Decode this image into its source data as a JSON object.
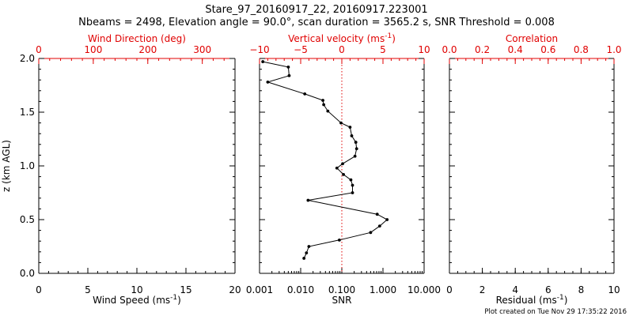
{
  "figure": {
    "title_line1": "Stare_97_20160917_22, 20160917.223001",
    "title_line2": "Nbeams = 2498, Elevation angle = 90.0°, scan duration = 3565.2 s, SNR Threshold = 0.008",
    "credit": "Plot created on Tue Nov 29 17:35:22 2016",
    "colors": {
      "axis": "#000000",
      "top_axis": "#e00000",
      "reference_line": "#e00000",
      "data": "#000000"
    }
  },
  "chart_data": [
    {
      "type": "line",
      "panel": "wind",
      "ylabel": "z (km AGL)",
      "ylim": [
        0,
        2
      ],
      "yticks": [
        "0.0",
        "0.5",
        "1.0",
        "1.5",
        "2.0"
      ],
      "bottom_axis": {
        "label": "Wind Speed (ms",
        "unit_sup": "-1",
        "label_end": ")",
        "range": [
          0,
          20
        ],
        "ticks": [
          "0",
          "5",
          "10",
          "15",
          "20"
        ]
      },
      "top_axis": {
        "label": "Wind Direction (deg)",
        "range": [
          0,
          360
        ],
        "ticks": [
          "0",
          "100",
          "200",
          "300"
        ]
      },
      "series": []
    },
    {
      "type": "line",
      "panel": "vertical-velocity",
      "ylim": [
        0,
        2
      ],
      "xscale": "log",
      "bottom_axis": {
        "label": "SNR",
        "range": [
          0.001,
          10
        ],
        "ticks": [
          "0.001",
          "0.010",
          "0.100",
          "1.000",
          "10.000"
        ]
      },
      "top_axis": {
        "label": "Vertical velocity (ms",
        "unit_sup": "-1",
        "label_end": ")",
        "range": [
          -10,
          10
        ],
        "ticks": [
          "−10",
          "−5",
          "0",
          "5",
          "10"
        ]
      },
      "reference_line": {
        "axis": "top",
        "value": 0
      },
      "series": [
        {
          "axis": "top",
          "points": [
            {
              "x": -9.6,
              "y": 1.97
            },
            {
              "x": -6.5,
              "y": 1.92
            },
            {
              "x": -6.4,
              "y": 1.84
            },
            {
              "x": -9.0,
              "y": 1.78
            },
            {
              "x": -4.5,
              "y": 1.67
            },
            {
              "x": -2.3,
              "y": 1.61
            },
            {
              "x": -2.2,
              "y": 1.57
            },
            {
              "x": -1.7,
              "y": 1.51
            },
            {
              "x": -0.1,
              "y": 1.4
            },
            {
              "x": 1.0,
              "y": 1.36
            },
            {
              "x": 1.2,
              "y": 1.28
            },
            {
              "x": 1.7,
              "y": 1.22
            },
            {
              "x": 1.8,
              "y": 1.16
            },
            {
              "x": 1.6,
              "y": 1.09
            },
            {
              "x": 0.1,
              "y": 1.02
            },
            {
              "x": -0.6,
              "y": 0.98
            },
            {
              "x": 0.2,
              "y": 0.92
            },
            {
              "x": 1.1,
              "y": 0.87
            },
            {
              "x": 1.3,
              "y": 0.82
            },
            {
              "x": 1.3,
              "y": 0.75
            },
            {
              "x": -4.1,
              "y": 0.68
            },
            {
              "x": 4.3,
              "y": 0.55
            },
            {
              "x": 5.5,
              "y": 0.5
            },
            {
              "x": 4.6,
              "y": 0.44
            },
            {
              "x": 3.5,
              "y": 0.38
            },
            {
              "x": -0.3,
              "y": 0.31
            },
            {
              "x": -4.0,
              "y": 0.25
            },
            {
              "x": -4.3,
              "y": 0.19
            },
            {
              "x": -4.6,
              "y": 0.14
            }
          ]
        }
      ]
    },
    {
      "type": "line",
      "panel": "correlation",
      "ylim": [
        0,
        2
      ],
      "bottom_axis": {
        "label": "Residual (ms",
        "unit_sup": "-1",
        "label_end": ")",
        "range": [
          0,
          10
        ],
        "ticks": [
          "0",
          "2",
          "4",
          "6",
          "8",
          "10"
        ]
      },
      "top_axis": {
        "label": "Correlation",
        "range": [
          0,
          1
        ],
        "ticks": [
          "0.0",
          "0.2",
          "0.4",
          "0.6",
          "0.8",
          "1.0"
        ]
      },
      "series": []
    }
  ]
}
